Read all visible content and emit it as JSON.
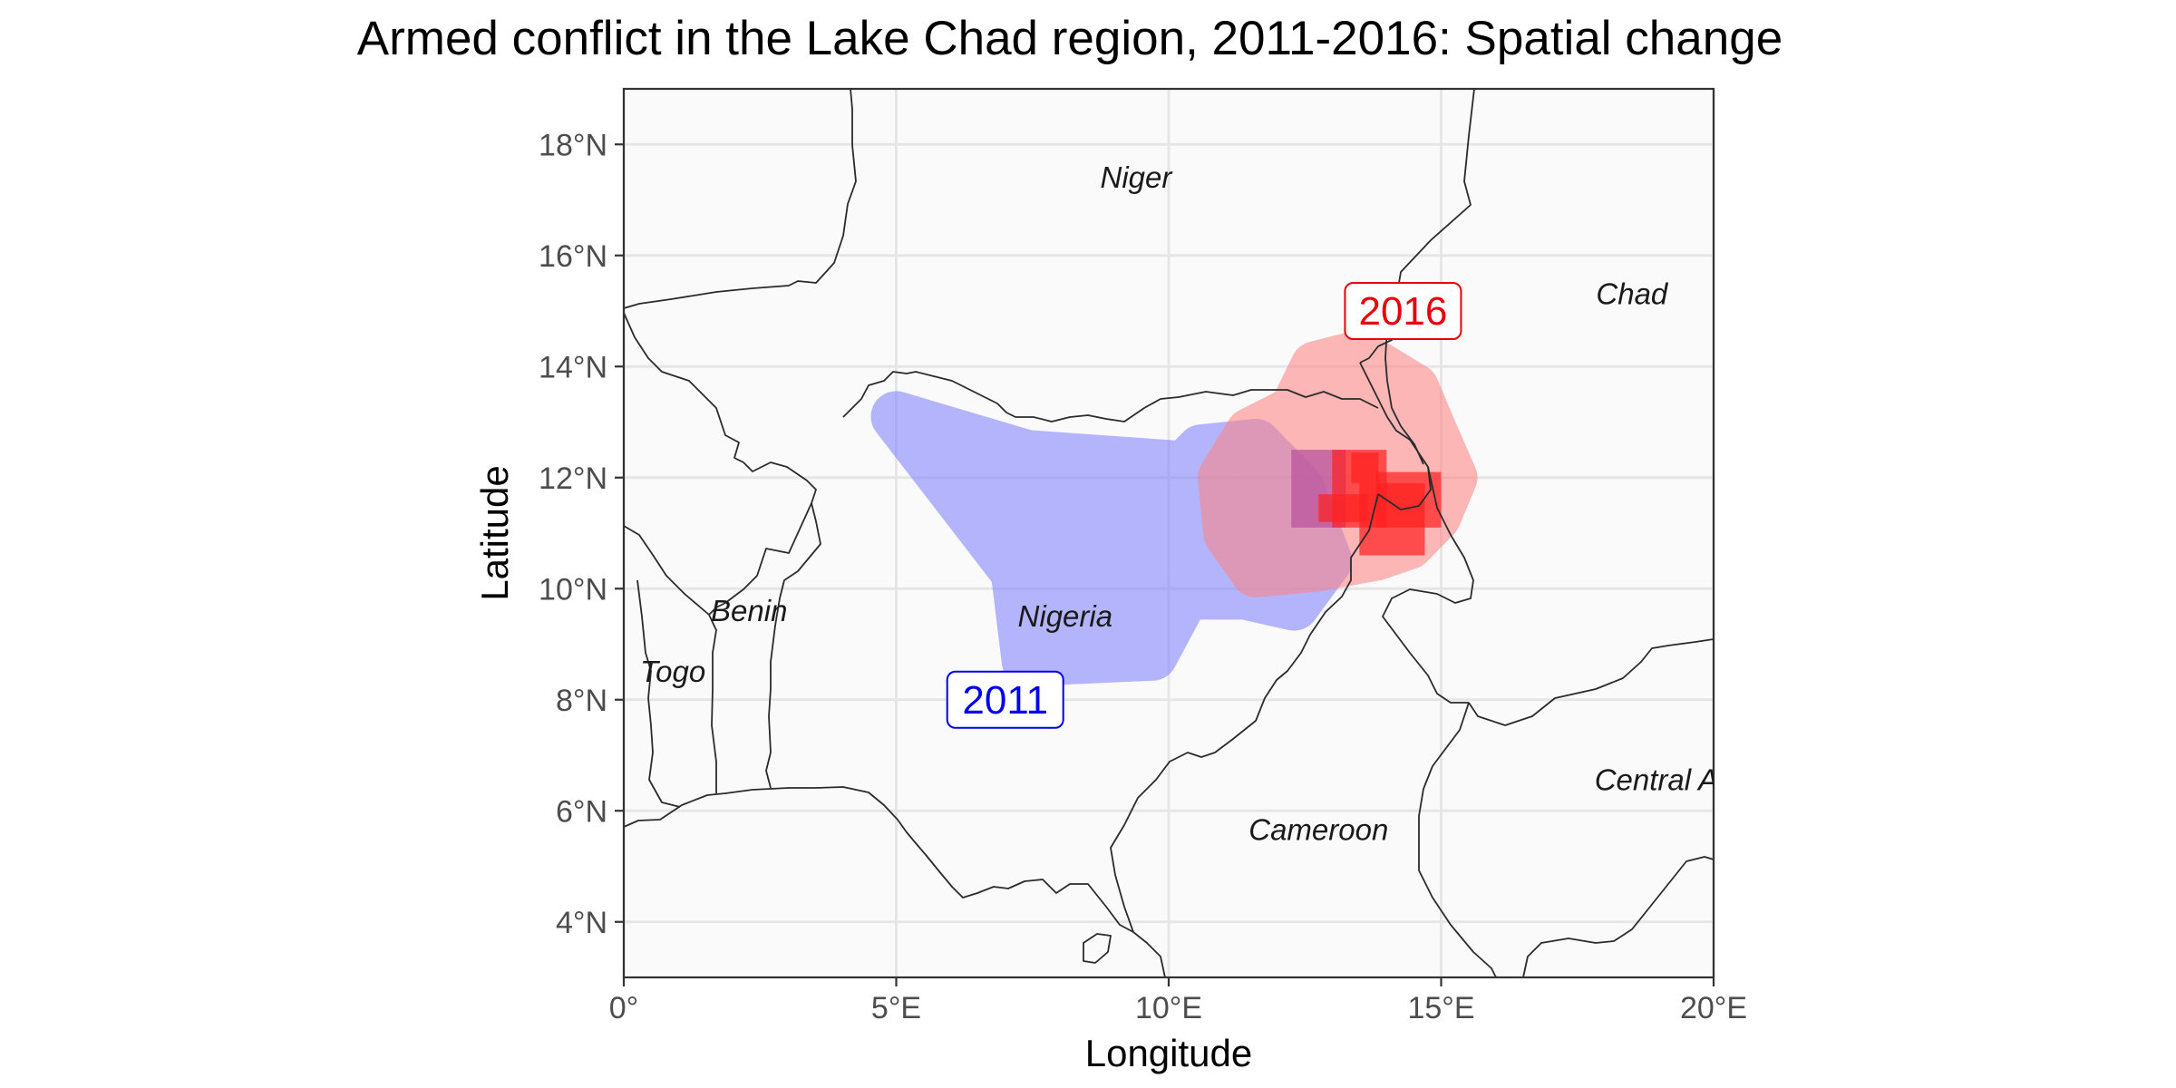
{
  "chart_data": {
    "type": "map",
    "title": "Armed conflict in the Lake Chad region, 2011-2016: Spatial change",
    "xlabel": "Longitude",
    "ylabel": "Latitude",
    "xlim": [
      0,
      20
    ],
    "ylim": [
      3,
      19
    ],
    "grid": true,
    "x_ticks": [
      {
        "value": 0,
        "label": "0°"
      },
      {
        "value": 5,
        "label": "5°E"
      },
      {
        "value": 10,
        "label": "10°E"
      },
      {
        "value": 15,
        "label": "15°E"
      },
      {
        "value": 20,
        "label": "20°E"
      }
    ],
    "y_ticks": [
      {
        "value": 4,
        "label": "4°N"
      },
      {
        "value": 6,
        "label": "6°N"
      },
      {
        "value": 8,
        "label": "8°N"
      },
      {
        "value": 10,
        "label": "10°N"
      },
      {
        "value": 12,
        "label": "12°N"
      },
      {
        "value": 14,
        "label": "14°N"
      },
      {
        "value": 16,
        "label": "16°N"
      },
      {
        "value": 18,
        "label": "18°N"
      }
    ],
    "country_labels": [
      {
        "name": "Niger",
        "lon": 9.4,
        "lat": 17.4
      },
      {
        "name": "Chad",
        "lon": 18.5,
        "lat": 15.3
      },
      {
        "name": "Benin",
        "lon": 2.3,
        "lat": 9.6
      },
      {
        "name": "Togo",
        "lon": 0.9,
        "lat": 8.5
      },
      {
        "name": "Nigeria",
        "lon": 8.1,
        "lat": 9.5
      },
      {
        "name": "Cameroon",
        "lon": 12.75,
        "lat": 5.65
      },
      {
        "name": "Central A",
        "lon": 18.95,
        "lat": 6.55
      }
    ],
    "year_labels": [
      {
        "text": "2011",
        "lon": 7.0,
        "lat": 8.0,
        "color": "#0000ee"
      },
      {
        "text": "2016",
        "lon": 14.3,
        "lat": 15.0,
        "color": "#e8000b"
      }
    ],
    "series": [
      {
        "name": "2011",
        "color": "#7b7bff",
        "hull": [
          [
            5.0,
            13.1
          ],
          [
            7.4,
            12.4
          ],
          [
            10.3,
            12.2
          ],
          [
            10.6,
            12.5
          ],
          [
            11.6,
            12.6
          ],
          [
            12.4,
            11.8
          ],
          [
            12.9,
            10.5
          ],
          [
            12.3,
            9.7
          ],
          [
            11.4,
            9.9
          ],
          [
            10.3,
            9.9
          ],
          [
            9.7,
            8.8
          ],
          [
            7.4,
            8.7
          ],
          [
            7.2,
            10.3
          ]
        ],
        "pixels": [
          {
            "lon": 12.25,
            "lat": 11.1,
            "w": 1.0,
            "h": 1.4
          }
        ]
      },
      {
        "name": "2016",
        "color": "#ff8080",
        "hull": [
          [
            11.5,
            12.8
          ],
          [
            12.3,
            13.2
          ],
          [
            12.7,
            14.0
          ],
          [
            13.5,
            14.2
          ],
          [
            14.5,
            13.6
          ],
          [
            14.8,
            12.9
          ],
          [
            15.2,
            12.0
          ],
          [
            14.9,
            11.3
          ],
          [
            14.4,
            10.8
          ],
          [
            13.8,
            10.6
          ],
          [
            12.7,
            10.4
          ],
          [
            11.6,
            10.3
          ],
          [
            11.1,
            11.0
          ],
          [
            11.0,
            12.0
          ]
        ],
        "pixels": [
          {
            "lon": 13.0,
            "lat": 11.1,
            "w": 1.0,
            "h": 1.4
          },
          {
            "lon": 12.75,
            "lat": 11.2,
            "w": 0.9,
            "h": 0.5
          },
          {
            "lon": 13.5,
            "lat": 10.6,
            "w": 1.2,
            "h": 1.3
          },
          {
            "lon": 13.8,
            "lat": 11.1,
            "w": 1.2,
            "h": 1.0
          },
          {
            "lon": 13.35,
            "lat": 11.9,
            "w": 0.5,
            "h": 0.55
          }
        ]
      }
    ]
  }
}
